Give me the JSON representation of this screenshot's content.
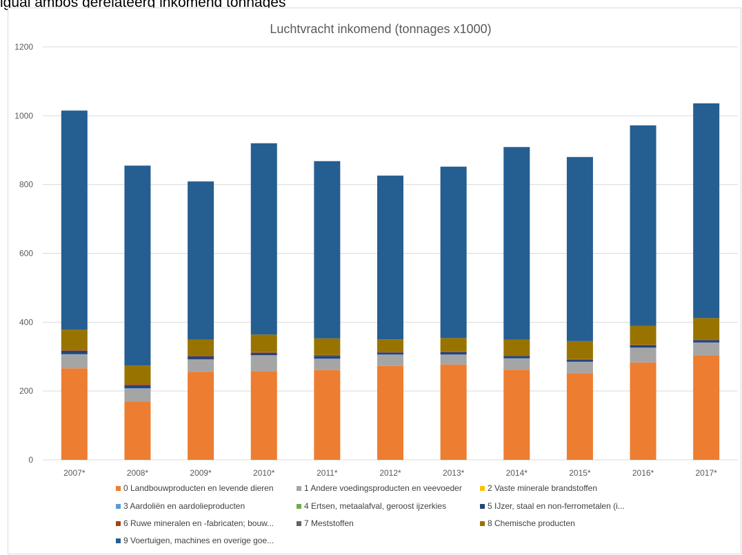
{
  "caption": "igual ambos gerelateerg inkomend tonnages",
  "chart_data": {
    "type": "bar",
    "stacked": true,
    "title": "Luchtvracht inkomend (tonnages x1000)",
    "xlabel": "",
    "ylabel": "",
    "ylim": [
      0,
      1200
    ],
    "yticks": [
      0,
      200,
      400,
      600,
      800,
      1000,
      1200
    ],
    "grid": true,
    "legend_position": "bottom",
    "categories": [
      "2007*",
      "2008*",
      "2009*",
      "2010*",
      "2011*",
      "2012*",
      "2013*",
      "2014*",
      "2015*",
      "2016*",
      "2017*"
    ],
    "series": [
      {
        "name": "0 Landbouwproducten en levende dieren",
        "color": "#ed7d31",
        "values": [
          266,
          170,
          256,
          258,
          261,
          273,
          277,
          262,
          252,
          283,
          304
        ]
      },
      {
        "name": "1 Andere voedingsproducten en veevoeder",
        "color": "#a5a5a5",
        "values": [
          40,
          37,
          35,
          45,
          32,
          32,
          28,
          32,
          32,
          42,
          36
        ]
      },
      {
        "name": "2 Vaste minerale brandstoffen",
        "color": "#ffc000",
        "values": [
          0,
          0,
          0,
          0,
          0,
          0,
          0,
          0,
          0,
          0,
          0
        ]
      },
      {
        "name": "3 Aardoliën en aardolieproducten",
        "color": "#5b9bd5",
        "values": [
          1,
          1,
          1,
          1,
          1,
          1,
          1,
          1,
          1,
          1,
          1
        ]
      },
      {
        "name": "4 Ertsen, metaalafval, geroost ijzerkies",
        "color": "#70ad47",
        "values": [
          0,
          0,
          0,
          0,
          0,
          0,
          0,
          0,
          0,
          0,
          0
        ]
      },
      {
        "name": "5 IJzer, staal en non-ferrometalen (i...",
        "color": "#264478",
        "values": [
          10,
          9,
          9,
          7,
          8,
          6,
          7,
          7,
          6,
          7,
          7
        ]
      },
      {
        "name": "6 Ruwe mineralen en -fabricaten; bouw...",
        "color": "#9e480e",
        "values": [
          3,
          3,
          3,
          2,
          3,
          2,
          2,
          2,
          2,
          2,
          2
        ]
      },
      {
        "name": "7 Meststoffen",
        "color": "#636363",
        "values": [
          0,
          0,
          0,
          0,
          0,
          0,
          0,
          0,
          0,
          0,
          0
        ]
      },
      {
        "name": "8 Chemische producten",
        "color": "#997300",
        "values": [
          58,
          54,
          45,
          51,
          48,
          36,
          39,
          45,
          52,
          54,
          62
        ]
      },
      {
        "name": "9 Voertuigen, machines en overige goe...",
        "color": "#255e91",
        "values": [
          637,
          581,
          460,
          556,
          515,
          476,
          498,
          560,
          535,
          583,
          624
        ]
      }
    ]
  }
}
